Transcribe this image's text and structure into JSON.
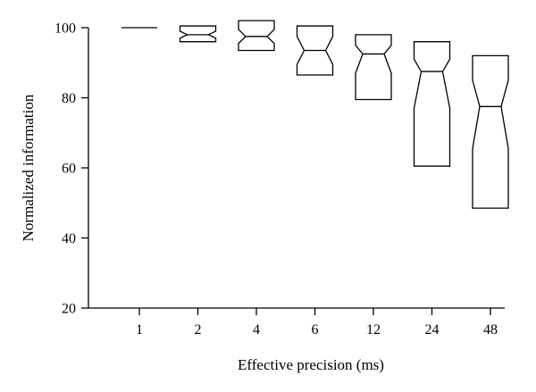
{
  "chart_data": {
    "type": "box",
    "notched": true,
    "title": "",
    "xlabel": "Effective precision (ms)",
    "ylabel": "Normalized information",
    "ylim": [
      20,
      100
    ],
    "yticks": [
      20,
      40,
      60,
      80,
      100
    ],
    "grid": false,
    "legend": "none",
    "categories": [
      "1",
      "2",
      "4",
      "6",
      "12",
      "24",
      "48"
    ],
    "boxes": [
      {
        "category": "1",
        "q1": 100,
        "median": 100,
        "q3": 100,
        "notch_low": 100,
        "notch_high": 100
      },
      {
        "category": "2",
        "q1": 96,
        "median": 98,
        "q3": 100.5,
        "notch_low": 97,
        "notch_high": 99
      },
      {
        "category": "4",
        "q1": 93.5,
        "median": 97.5,
        "q3": 102,
        "notch_low": 95.5,
        "notch_high": 99.5
      },
      {
        "category": "6",
        "q1": 86.5,
        "median": 93.5,
        "q3": 100.5,
        "notch_low": 89.5,
        "notch_high": 97.5
      },
      {
        "category": "12",
        "q1": 79.5,
        "median": 92.5,
        "q3": 98,
        "notch_low": 87,
        "notch_high": 95
      },
      {
        "category": "24",
        "q1": 60.5,
        "median": 87.5,
        "q3": 96,
        "notch_low": 77,
        "notch_high": 91
      },
      {
        "category": "48",
        "q1": 48.5,
        "median": 77.5,
        "q3": 92,
        "notch_low": 65.5,
        "notch_high": 85
      }
    ]
  }
}
